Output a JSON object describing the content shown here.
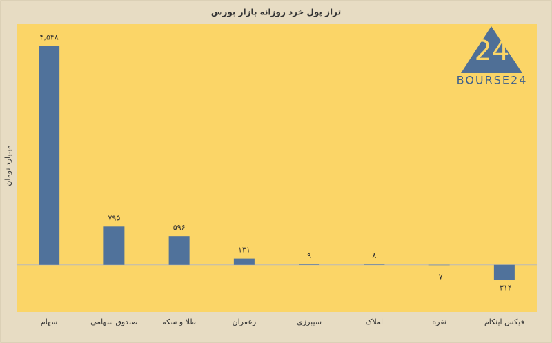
{
  "chart_data": {
    "type": "bar",
    "title": "تراز پول خرد روزانه بازار بورس",
    "y_label": "میلیارد تومان",
    "categories": [
      "سهام",
      "صندوق سهامی",
      "طلا و سکه",
      "زعفران",
      "سیبرزی",
      "املاک",
      "نقره",
      "فیکس اینکام"
    ],
    "values": [
      4548,
      795,
      596,
      131,
      9,
      8,
      -7,
      -314
    ],
    "value_labels": [
      "۴,۵۴۸",
      "۷۹۵",
      "۵۹۶",
      "۱۳۱",
      "۹",
      "۸",
      "-۷",
      "-۳۱۴"
    ],
    "color": "#50729b",
    "ylim": [
      -950,
      4900
    ],
    "logo_number": "24",
    "logo_text": "BOURSE24"
  }
}
